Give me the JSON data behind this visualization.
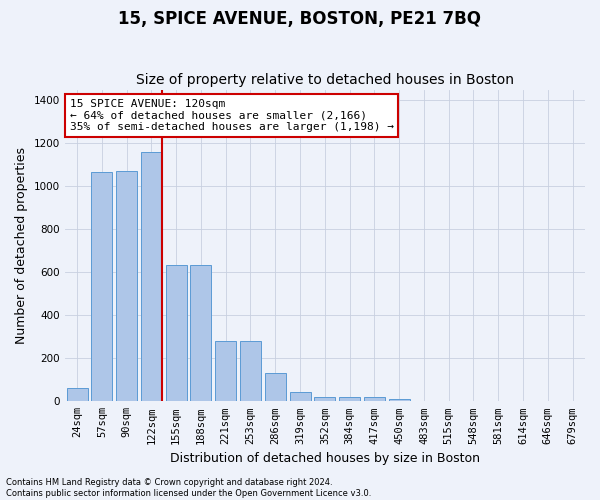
{
  "title": "15, SPICE AVENUE, BOSTON, PE21 7BQ",
  "subtitle": "Size of property relative to detached houses in Boston",
  "xlabel": "Distribution of detached houses by size in Boston",
  "ylabel": "Number of detached properties",
  "categories": [
    "24sqm",
    "57sqm",
    "90sqm",
    "122sqm",
    "155sqm",
    "188sqm",
    "221sqm",
    "253sqm",
    "286sqm",
    "319sqm",
    "352sqm",
    "384sqm",
    "417sqm",
    "450sqm",
    "483sqm",
    "515sqm",
    "548sqm",
    "581sqm",
    "614sqm",
    "646sqm",
    "679sqm"
  ],
  "values": [
    62,
    1065,
    1070,
    1160,
    635,
    635,
    280,
    280,
    130,
    45,
    20,
    20,
    20,
    10,
    0,
    0,
    0,
    0,
    0,
    0,
    0
  ],
  "bar_color": "#aec6e8",
  "bar_edge_color": "#5b9bd5",
  "vline_color": "#cc0000",
  "vline_x_index": 3,
  "ylim": [
    0,
    1450
  ],
  "yticks": [
    0,
    200,
    400,
    600,
    800,
    1000,
    1200,
    1400
  ],
  "annotation_line1": "15 SPICE AVENUE: 120sqm",
  "annotation_line2": "← 64% of detached houses are smaller (2,166)",
  "annotation_line3": "35% of semi-detached houses are larger (1,198) →",
  "annotation_box_color": "#ffffff",
  "annotation_box_edge_color": "#cc0000",
  "footnote1": "Contains HM Land Registry data © Crown copyright and database right 2024.",
  "footnote2": "Contains public sector information licensed under the Open Government Licence v3.0.",
  "title_fontsize": 12,
  "subtitle_fontsize": 10,
  "axis_label_fontsize": 9,
  "tick_fontsize": 7.5,
  "annotation_fontsize": 8,
  "bg_color": "#eef2fa"
}
